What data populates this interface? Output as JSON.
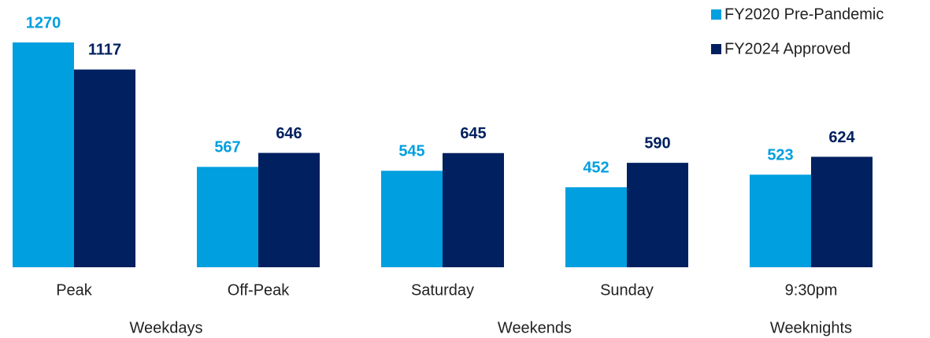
{
  "chart_data": {
    "type": "bar",
    "groups": [
      {
        "name": "Weekdays",
        "categories": [
          "Peak",
          "Off-Peak"
        ]
      },
      {
        "name": "Weekends",
        "categories": [
          "Saturday",
          "Sunday"
        ]
      },
      {
        "name": "Weeknights",
        "categories": [
          "9:30pm"
        ]
      }
    ],
    "series": [
      {
        "name": "FY2020 Pre-Pandemic",
        "color": "#009fdf",
        "values": [
          1270,
          567,
          545,
          452,
          523
        ]
      },
      {
        "name": "FY2024 Approved",
        "color": "#002060",
        "values": [
          1117,
          646,
          645,
          590,
          624
        ]
      }
    ],
    "legend": "top-right"
  }
}
